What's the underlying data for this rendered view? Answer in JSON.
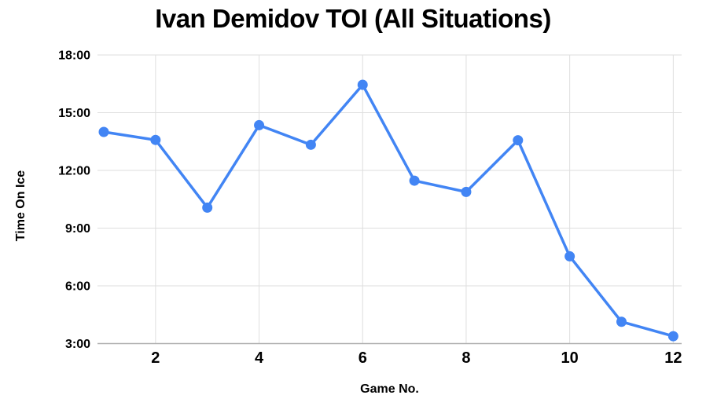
{
  "page": {
    "background": "#ffffff"
  },
  "chart_data": {
    "type": "line",
    "title": "Ivan Demidov TOI (All Situations)",
    "xlabel": "Game No.",
    "ylabel": "Time On Ice",
    "x": [
      1,
      2,
      3,
      4,
      5,
      6,
      7,
      8,
      9,
      10,
      11,
      12
    ],
    "series": [
      {
        "name": "TOI (All Situations)",
        "values_mmss": [
          "14:00",
          "13:35",
          "10:04",
          "14:21",
          "13:20",
          "16:27",
          "11:28",
          "10:53",
          "13:34",
          "7:32",
          "4:08",
          "3:23"
        ],
        "values_seconds": [
          840,
          815,
          604,
          861,
          800,
          987,
          688,
          653,
          814,
          452,
          248,
          203
        ],
        "color": "#4285F4"
      }
    ],
    "x_ticks": [
      "2",
      "4",
      "6",
      "8",
      "10",
      "12"
    ],
    "x_tick_values": [
      2,
      4,
      6,
      8,
      10,
      12
    ],
    "y_ticks": [
      "3:00",
      "6:00",
      "9:00",
      "12:00",
      "15:00",
      "18:00"
    ],
    "y_tick_seconds": [
      180,
      360,
      540,
      720,
      900,
      1080
    ],
    "ylim_seconds": [
      180,
      1080
    ],
    "xlim": [
      1,
      12
    ],
    "grid": true,
    "legend": "none",
    "marker": "circle",
    "colors": {
      "series": "#4285F4",
      "gridline": "#dedede",
      "axis_line": "#b0b0b0",
      "text": "#000000",
      "background": "#ffffff"
    }
  }
}
